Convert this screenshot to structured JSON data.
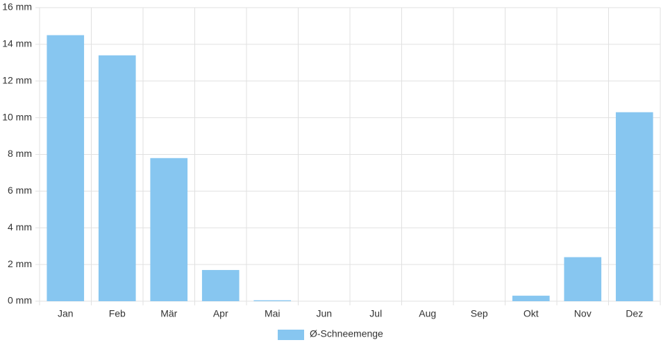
{
  "chart_data": {
    "type": "bar",
    "categories": [
      "Jan",
      "Feb",
      "Mär",
      "Apr",
      "Mai",
      "Jun",
      "Jul",
      "Aug",
      "Sep",
      "Okt",
      "Nov",
      "Dez"
    ],
    "series": [
      {
        "name": "Ø-Schneemenge",
        "color": "#87c6f0",
        "values": [
          14.5,
          13.4,
          7.8,
          1.7,
          0.05,
          0,
          0,
          0,
          0,
          0.3,
          2.4,
          10.3
        ]
      }
    ],
    "ylim": [
      0,
      16
    ],
    "yticks": [
      {
        "value": 0,
        "label": "0 mm"
      },
      {
        "value": 2,
        "label": "2 mm"
      },
      {
        "value": 4,
        "label": "4 mm"
      },
      {
        "value": 6,
        "label": "6 mm"
      },
      {
        "value": 8,
        "label": "8 mm"
      },
      {
        "value": 10,
        "label": "10 mm"
      },
      {
        "value": 12,
        "label": "12 mm"
      },
      {
        "value": 14,
        "label": "14 mm"
      },
      {
        "value": 16,
        "label": "16 mm"
      }
    ],
    "grid": true
  }
}
